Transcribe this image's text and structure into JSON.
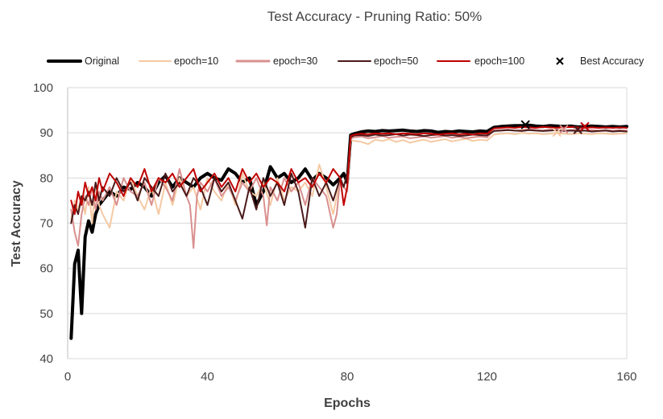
{
  "chart_data": {
    "type": "line",
    "title": "Test Accuracy - Pruning Ratio: 50%",
    "xlabel": "Epochs",
    "ylabel": "Test Accuracy",
    "xlim": [
      0,
      160
    ],
    "ylim": [
      40,
      100
    ],
    "xticks": [
      "0",
      "40",
      "80",
      "120",
      "160"
    ],
    "yticks": [
      "40",
      "50",
      "60",
      "70",
      "80",
      "90",
      "100"
    ],
    "grid": "horizontal",
    "legend_position": "top",
    "series": [
      {
        "name": "Original",
        "color": "#000000",
        "width": 4,
        "x": [
          1,
          2,
          3,
          4,
          5,
          6,
          7,
          8,
          9,
          10,
          12,
          14,
          16,
          18,
          20,
          22,
          24,
          26,
          28,
          30,
          32,
          34,
          36,
          38,
          40,
          42,
          44,
          46,
          48,
          50,
          52,
          54,
          56,
          58,
          60,
          62,
          64,
          66,
          68,
          70,
          72,
          74,
          76,
          78,
          79,
          80,
          81,
          82,
          84,
          86,
          88,
          90,
          92,
          94,
          96,
          98,
          100,
          102,
          104,
          106,
          108,
          110,
          112,
          114,
          116,
          118,
          120,
          122,
          124,
          126,
          128,
          130,
          132,
          134,
          136,
          138,
          140,
          142,
          144,
          146,
          148,
          150,
          152,
          154,
          156,
          158,
          160
        ],
        "values": [
          44.5,
          61,
          64,
          50,
          67,
          70.5,
          68,
          72,
          74,
          75,
          77,
          76,
          78,
          77.5,
          79,
          78,
          76,
          79,
          80.5,
          78,
          80,
          79,
          78,
          80,
          81,
          80,
          79.5,
          82,
          81,
          79,
          80,
          74,
          77,
          82.5,
          80,
          81,
          79,
          80,
          82,
          79.5,
          81,
          80,
          78.5,
          80,
          81,
          79,
          89.5,
          89.8,
          90.2,
          90.4,
          90.3,
          90.5,
          90.4,
          90.5,
          90.6,
          90.4,
          90.3,
          90.5,
          90.4,
          90.1,
          90.3,
          90.2,
          90.4,
          90.3,
          90.2,
          90.4,
          90.3,
          91.2,
          91.4,
          91.5,
          91.6,
          91.6,
          91.7,
          91.5,
          91.4,
          91.6,
          91.5,
          91.4,
          91.5,
          91.3,
          91.4,
          91.5,
          91.4,
          91.3,
          91.4,
          91.3,
          91.4
        ]
      },
      {
        "name": "epoch=10",
        "color": "#f5c9a3",
        "width": 2,
        "x": [
          1,
          2,
          3,
          4,
          5,
          6,
          7,
          8,
          9,
          10,
          12,
          14,
          16,
          18,
          20,
          22,
          24,
          26,
          28,
          30,
          32,
          34,
          36,
          38,
          40,
          42,
          44,
          46,
          48,
          50,
          52,
          54,
          56,
          58,
          60,
          62,
          64,
          66,
          68,
          70,
          72,
          74,
          76,
          78,
          79,
          80,
          81,
          82,
          84,
          86,
          88,
          90,
          92,
          94,
          96,
          98,
          100,
          102,
          104,
          106,
          108,
          110,
          112,
          114,
          116,
          118,
          120,
          122,
          124,
          126,
          128,
          130,
          132,
          134,
          136,
          138,
          140,
          142,
          144,
          146,
          148,
          150,
          152,
          154,
          156,
          158,
          160
        ],
        "values": [
          71,
          75,
          73,
          76,
          72,
          78,
          70,
          79,
          74,
          72,
          69,
          77,
          75,
          80,
          76,
          73,
          78,
          72,
          79,
          74,
          80,
          76,
          78,
          73,
          80,
          77,
          75,
          79,
          74,
          81,
          77,
          76,
          79,
          74,
          80,
          75,
          78,
          77,
          79,
          76,
          83,
          78,
          72,
          80,
          78,
          77,
          88.5,
          88.2,
          88,
          87.5,
          88.5,
          88.2,
          88.6,
          88,
          88.4,
          87.8,
          88.2,
          88.5,
          88,
          88.3,
          88.6,
          88.1,
          88.4,
          88.7,
          88.2,
          88.5,
          88.3,
          89.6,
          89.8,
          89.9,
          89.7,
          90,
          89.8,
          89.9,
          89.7,
          89.8,
          90,
          89.8,
          89.7,
          89.9,
          89.8,
          89.7,
          89.9,
          89.8,
          89.7,
          89.8,
          89.9
        ]
      },
      {
        "name": "epoch=30",
        "color": "#d9908f",
        "width": 2,
        "x": [
          1,
          2,
          3,
          4,
          5,
          6,
          7,
          8,
          9,
          10,
          12,
          14,
          16,
          18,
          20,
          22,
          24,
          26,
          28,
          30,
          32,
          34,
          35,
          36,
          37,
          38,
          40,
          42,
          44,
          46,
          48,
          50,
          52,
          54,
          56,
          57,
          58,
          60,
          62,
          64,
          66,
          68,
          70,
          72,
          74,
          76,
          77,
          78,
          79,
          80,
          81,
          82,
          84,
          86,
          88,
          90,
          92,
          94,
          96,
          98,
          100,
          102,
          104,
          106,
          108,
          110,
          112,
          114,
          116,
          118,
          120,
          122,
          124,
          126,
          128,
          130,
          132,
          134,
          136,
          138,
          140,
          142,
          144,
          146,
          148,
          150,
          152,
          154,
          156,
          158,
          160
        ],
        "values": [
          73,
          68,
          65,
          72,
          76,
          74,
          78,
          73,
          77,
          75,
          78,
          74,
          80,
          77,
          76,
          79,
          74,
          80,
          78,
          75,
          82,
          76,
          74,
          64.5,
          76,
          79,
          77,
          80,
          76,
          78,
          75,
          79,
          77,
          80,
          76,
          69.5,
          78,
          75,
          80,
          77,
          79,
          74,
          80,
          78,
          76,
          69,
          72,
          80,
          78,
          77,
          88.8,
          89,
          89.2,
          88.8,
          89,
          89.3,
          88.9,
          89.1,
          89.2,
          88.8,
          89,
          89.2,
          88.9,
          89.1,
          89.3,
          88.9,
          89.1,
          88.8,
          89,
          89.2,
          89,
          90.5,
          90.6,
          90.7,
          90.5,
          90.6,
          90.8,
          90.6,
          90.5,
          90.7,
          90.6,
          90.5,
          90.6,
          90.7,
          90.5,
          90.6,
          90.5,
          90.6,
          90.5,
          90.6,
          90.5
        ]
      },
      {
        "name": "epoch=50",
        "color": "#4a1a1a",
        "width": 2,
        "x": [
          1,
          2,
          3,
          4,
          5,
          6,
          7,
          8,
          9,
          10,
          12,
          14,
          16,
          18,
          20,
          22,
          24,
          26,
          28,
          30,
          32,
          34,
          36,
          38,
          40,
          42,
          44,
          46,
          48,
          50,
          52,
          54,
          56,
          58,
          60,
          62,
          64,
          66,
          68,
          70,
          72,
          74,
          76,
          78,
          79,
          80,
          81,
          82,
          84,
          86,
          88,
          90,
          92,
          94,
          96,
          98,
          100,
          102,
          104,
          106,
          108,
          110,
          112,
          114,
          116,
          118,
          120,
          122,
          124,
          126,
          128,
          130,
          132,
          134,
          136,
          138,
          140,
          142,
          144,
          146,
          148,
          150,
          152,
          154,
          156,
          158,
          160
        ],
        "values": [
          70,
          74,
          72,
          76,
          75,
          77,
          74,
          79,
          75,
          78,
          76,
          80,
          77,
          79,
          75,
          80,
          78,
          76,
          81,
          77,
          79,
          76,
          80,
          78,
          74,
          80,
          77,
          79,
          75,
          71,
          78,
          73,
          80,
          76,
          79,
          74,
          81,
          77,
          69,
          80,
          76,
          79,
          75,
          80,
          78,
          81,
          89,
          89.4,
          89.5,
          89.3,
          89.6,
          89.4,
          89.5,
          89.7,
          89.4,
          89.6,
          89.5,
          89.3,
          89.5,
          89.6,
          89.4,
          89.5,
          89.3,
          89.4,
          89.6,
          89.5,
          89.4,
          90.4,
          90.5,
          90.6,
          90.5,
          90.4,
          90.6,
          90.5,
          90.4,
          90.5,
          90.6,
          90.4,
          90.5,
          90.4,
          90.5,
          90.3,
          90.4,
          90.5,
          90.3,
          90.4,
          90.3
        ]
      },
      {
        "name": "epoch=100",
        "color": "#c00000",
        "width": 2,
        "x": [
          1,
          2,
          3,
          4,
          5,
          6,
          7,
          8,
          9,
          10,
          12,
          14,
          16,
          18,
          20,
          22,
          24,
          26,
          28,
          30,
          32,
          34,
          36,
          38,
          40,
          42,
          44,
          46,
          48,
          50,
          52,
          54,
          56,
          58,
          60,
          62,
          64,
          66,
          68,
          70,
          72,
          74,
          76,
          78,
          79,
          80,
          81,
          82,
          84,
          86,
          88,
          90,
          92,
          94,
          96,
          98,
          100,
          102,
          104,
          106,
          108,
          110,
          112,
          114,
          116,
          118,
          120,
          122,
          124,
          126,
          128,
          130,
          132,
          134,
          136,
          138,
          140,
          142,
          144,
          146,
          148,
          150,
          152,
          154,
          156,
          158,
          160
        ],
        "values": [
          75,
          72,
          77,
          74,
          79,
          76,
          78,
          75,
          80,
          77,
          81,
          79,
          76,
          80,
          78,
          82,
          77,
          80,
          79,
          81,
          78,
          80,
          82,
          77,
          79,
          81,
          78,
          80,
          77,
          82,
          79,
          81,
          78,
          80,
          79,
          77,
          82,
          79,
          80,
          78,
          81,
          79,
          82,
          80,
          74,
          78,
          89.3,
          89.6,
          89.8,
          89.7,
          89.9,
          89.8,
          89.9,
          89.7,
          89.9,
          89.8,
          89.7,
          89.9,
          89.8,
          89.6,
          89.8,
          89.9,
          89.7,
          89.8,
          89.6,
          89.9,
          89.8,
          91,
          91.1,
          91.2,
          91.1,
          91.3,
          91.2,
          91.1,
          91.3,
          91.2,
          91.1,
          91.2,
          91.3,
          91.2,
          91.1,
          91.2,
          91.1,
          91.2,
          91.1,
          91.2,
          91.1
        ]
      }
    ],
    "best_accuracy": {
      "name": "Best Accuracy",
      "marker": "x",
      "points": [
        {
          "series": "Original",
          "x": 131,
          "y": 91.8,
          "color": "#000000"
        },
        {
          "series": "epoch=10",
          "x": 140,
          "y": 90.1,
          "color": "#f5c9a3"
        },
        {
          "series": "epoch=30",
          "x": 142,
          "y": 90.8,
          "color": "#d9908f"
        },
        {
          "series": "epoch=50",
          "x": 146,
          "y": 90.7,
          "color": "#4a1a1a"
        },
        {
          "series": "epoch=100",
          "x": 148,
          "y": 91.4,
          "color": "#c00000"
        }
      ]
    }
  }
}
